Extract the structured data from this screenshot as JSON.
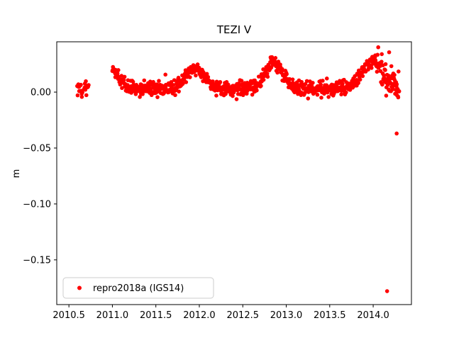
{
  "title": "TEZI V",
  "ylabel": "m",
  "legend": {
    "label": "repro2018a (IGS14)",
    "marker_color": "#ff0000"
  },
  "chart_data": {
    "type": "scatter",
    "title": "TEZI V",
    "xlabel": "",
    "ylabel": "m",
    "grid": false,
    "legend_position": "lower left",
    "series": [
      {
        "name": "repro2018a (IGS14)",
        "color": "#ff0000"
      }
    ],
    "xlim": [
      2010.36,
      2014.44
    ],
    "ylim": [
      -0.19,
      0.045
    ],
    "xticks": [
      2010.5,
      2011.0,
      2011.5,
      2012.0,
      2012.5,
      2013.0,
      2013.5,
      2014.0
    ],
    "xtick_labels": [
      "2010.5",
      "2011.0",
      "2011.5",
      "2012.0",
      "2012.5",
      "2013.0",
      "2013.5",
      "2014.0"
    ],
    "yticks": [
      0.0,
      -0.05,
      -0.1,
      -0.15
    ],
    "ytick_labels": [
      "0.00",
      "−0.05",
      "−0.10",
      "−0.15"
    ],
    "marker": {
      "shape": "dot",
      "color": "#ff0000",
      "radius": 2.8
    },
    "generator": {
      "seed": 42,
      "baseline": 0.003,
      "noise_sigma": 0.0032,
      "segments": [
        {
          "x_start": 2010.595,
          "x_end": 2010.655,
          "n": 14
        },
        {
          "x_start": 2010.675,
          "x_end": 2010.725,
          "n": 12
        },
        {
          "x_start": 2011.0,
          "x_end": 2014.3,
          "n": 900
        }
      ],
      "seasonal_peaks": [
        {
          "center": 2010.98,
          "amplitude": 0.018,
          "width": 0.09
        },
        {
          "center": 2011.95,
          "amplitude": 0.018,
          "width": 0.11
        },
        {
          "center": 2012.86,
          "amplitude": 0.023,
          "width": 0.1
        },
        {
          "center": 2013.99,
          "amplitude": 0.024,
          "width": 0.12
        }
      ],
      "late_scatter": {
        "x_start": 2014.05,
        "extra_sigma": 0.007
      },
      "outliers": [
        [
          2014.16,
          -0.178
        ],
        [
          2014.27,
          -0.037
        ]
      ]
    }
  }
}
